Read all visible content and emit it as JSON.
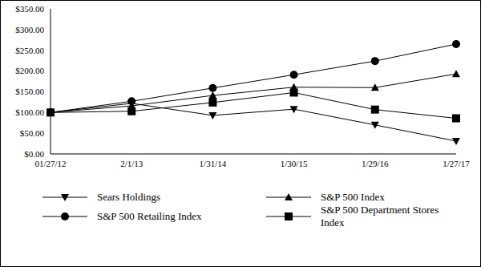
{
  "chart_data": {
    "type": "line",
    "categories": [
      "01/27/12",
      "2/1/13",
      "1/31/14",
      "1/30/15",
      "1/29/16",
      "1/27/17"
    ],
    "series": [
      {
        "name": "Sears Holdings",
        "color": "#000000",
        "marker": "triangle-down",
        "values": [
          100,
          122,
          93,
          108,
          70,
          31
        ]
      },
      {
        "name": "S&P 500 Index",
        "color": "#000000",
        "marker": "triangle-up",
        "values": [
          100,
          116,
          141,
          161,
          160,
          193
        ]
      },
      {
        "name": "S&P 500 Retailing Index",
        "color": "#000000",
        "marker": "circle",
        "values": [
          100,
          127,
          159,
          191,
          224,
          265
        ]
      },
      {
        "name": "S&P 500 Department Stores Index",
        "color": "#000000",
        "marker": "square",
        "values": [
          100,
          103,
          124,
          148,
          107,
          86
        ]
      }
    ],
    "ylim": [
      0,
      350
    ],
    "yticks": [
      {
        "value": 0,
        "label": "$0.00"
      },
      {
        "value": 50,
        "label": "$50.00"
      },
      {
        "value": 100,
        "label": "$100.00"
      },
      {
        "value": 150,
        "label": "$150.00"
      },
      {
        "value": 200,
        "label": "$200.00"
      },
      {
        "value": 250,
        "label": "$250.00"
      },
      {
        "value": 300,
        "label": "$300.00"
      },
      {
        "value": 350,
        "label": "$350.00"
      }
    ],
    "grid": false,
    "legend": "bottom"
  }
}
